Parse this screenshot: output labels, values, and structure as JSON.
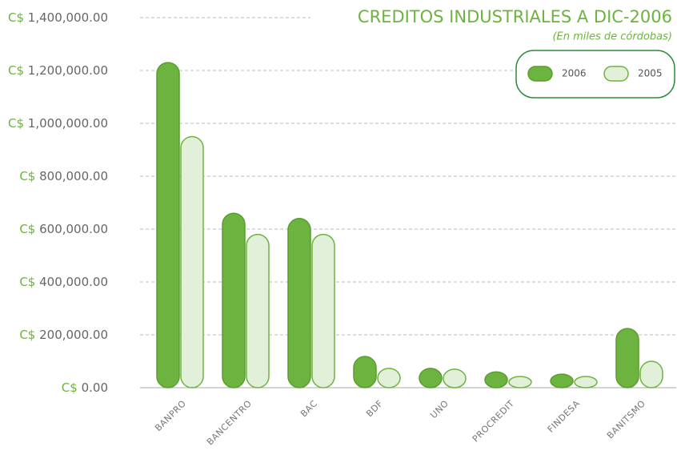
{
  "chart_data": {
    "type": "bar",
    "title": "CREDITOS INDUSTRIALES A DIC-2006",
    "subtitle": "(En miles de córdobas)",
    "categories": [
      "BANPRO",
      "BANCENTRO",
      "BAC",
      "BDF",
      "UNO",
      "PROCREDIT",
      "FINDESA",
      "BANITSMO"
    ],
    "series": [
      {
        "name": "2006",
        "color": "#6db33f",
        "values": [
          1230000,
          660000,
          640000,
          118000,
          73000,
          60000,
          51000,
          224000
        ]
      },
      {
        "name": "2005",
        "color": "#e2f0d9",
        "values": [
          950000,
          580000,
          580000,
          73000,
          70000,
          42000,
          40000,
          100000
        ]
      }
    ],
    "ylim": [
      0,
      1400000
    ],
    "yticks": [
      {
        "value": 0,
        "label": "C$ 0.00"
      },
      {
        "value": 200000,
        "label": "C$ 200,000.00"
      },
      {
        "value": 400000,
        "label": "C$ 400,000.00"
      },
      {
        "value": 600000,
        "label": "C$ 600,000.00"
      },
      {
        "value": 800000,
        "label": "C$ 800,000.00"
      },
      {
        "value": 1000000,
        "label": "C$ 1,000,000.00"
      },
      {
        "value": 1200000,
        "label": "C$ 1,200,000.00"
      },
      {
        "value": 1400000,
        "label": "C$ 1,400,000.00"
      }
    ],
    "grid": true,
    "legend": "top-right"
  }
}
